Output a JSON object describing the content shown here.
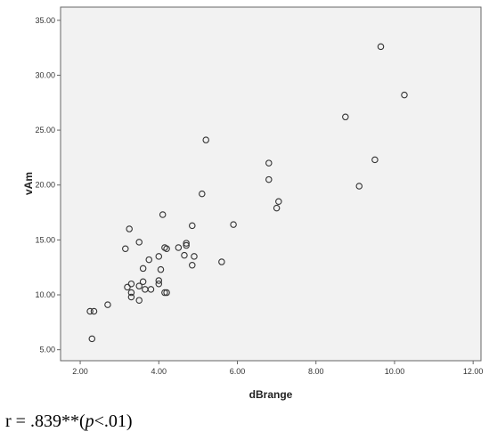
{
  "chart_data": {
    "type": "scatter",
    "title": "",
    "xlabel": "dBrange",
    "ylabel": "vAm",
    "xlim": [
      1.5,
      12.2
    ],
    "ylim": [
      4.0,
      36.2
    ],
    "xticks": [
      2.0,
      4.0,
      6.0,
      8.0,
      10.0,
      12.0
    ],
    "xtick_labels": [
      "2.00",
      "4.00",
      "6.00",
      "8.00",
      "10.00",
      "12.00"
    ],
    "yticks": [
      5.0,
      10.0,
      15.0,
      20.0,
      25.0,
      30.0,
      35.0
    ],
    "ytick_labels": [
      "5.00",
      "10.00",
      "15.00",
      "20.00",
      "25.00",
      "30.00",
      "35.00"
    ],
    "grid": false,
    "marker": "open-circle",
    "colors": {
      "plot_bg": "#f2f2f2",
      "marker_stroke": "#333333",
      "axis": "#666666"
    },
    "points": [
      {
        "x": 2.25,
        "y": 8.5
      },
      {
        "x": 2.35,
        "y": 8.5
      },
      {
        "x": 2.3,
        "y": 6.0
      },
      {
        "x": 2.7,
        "y": 9.1
      },
      {
        "x": 3.15,
        "y": 14.2
      },
      {
        "x": 3.25,
        "y": 16.0
      },
      {
        "x": 3.2,
        "y": 10.7
      },
      {
        "x": 3.3,
        "y": 11.0
      },
      {
        "x": 3.3,
        "y": 10.2
      },
      {
        "x": 3.3,
        "y": 9.8
      },
      {
        "x": 3.5,
        "y": 14.8
      },
      {
        "x": 3.5,
        "y": 10.8
      },
      {
        "x": 3.5,
        "y": 9.5
      },
      {
        "x": 3.6,
        "y": 12.4
      },
      {
        "x": 3.6,
        "y": 11.2
      },
      {
        "x": 3.65,
        "y": 10.5
      },
      {
        "x": 3.75,
        "y": 13.2
      },
      {
        "x": 3.8,
        "y": 10.5
      },
      {
        "x": 4.0,
        "y": 13.5
      },
      {
        "x": 4.0,
        "y": 11.0
      },
      {
        "x": 4.0,
        "y": 11.3
      },
      {
        "x": 4.05,
        "y": 12.3
      },
      {
        "x": 4.1,
        "y": 17.3
      },
      {
        "x": 4.15,
        "y": 14.3
      },
      {
        "x": 4.2,
        "y": 14.2
      },
      {
        "x": 4.15,
        "y": 10.2
      },
      {
        "x": 4.2,
        "y": 10.2
      },
      {
        "x": 4.5,
        "y": 14.3
      },
      {
        "x": 4.65,
        "y": 13.6
      },
      {
        "x": 4.7,
        "y": 14.7
      },
      {
        "x": 4.7,
        "y": 14.5
      },
      {
        "x": 4.85,
        "y": 16.3
      },
      {
        "x": 4.85,
        "y": 12.7
      },
      {
        "x": 4.9,
        "y": 13.5
      },
      {
        "x": 5.1,
        "y": 19.2
      },
      {
        "x": 5.2,
        "y": 24.1
      },
      {
        "x": 5.6,
        "y": 13.0
      },
      {
        "x": 5.9,
        "y": 16.4
      },
      {
        "x": 6.8,
        "y": 22.0
      },
      {
        "x": 6.8,
        "y": 20.5
      },
      {
        "x": 7.0,
        "y": 17.9
      },
      {
        "x": 7.05,
        "y": 18.5
      },
      {
        "x": 8.75,
        "y": 26.2
      },
      {
        "x": 9.1,
        "y": 19.9
      },
      {
        "x": 9.5,
        "y": 22.3
      },
      {
        "x": 9.65,
        "y": 32.6
      },
      {
        "x": 10.25,
        "y": 28.2
      }
    ]
  },
  "caption": {
    "prefix": "r = .839**(",
    "p_symbol": "p",
    "suffix": "<.01)"
  }
}
